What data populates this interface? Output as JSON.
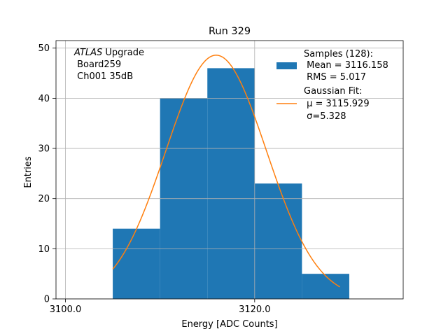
{
  "chart_data": {
    "type": "bar",
    "title": "Run 329",
    "xlabel": "Energy [ADC Counts]",
    "ylabel": "Entries",
    "xlim": [
      3099.0,
      3135.7
    ],
    "ylim": [
      0,
      51.5
    ],
    "x_ticks": [
      {
        "value": 3100.0,
        "label": "3100.0"
      },
      {
        "value": 3120.0,
        "label": "3120.0"
      }
    ],
    "y_ticks": [
      0,
      10,
      20,
      30,
      40,
      50
    ],
    "grid": true,
    "annotation": {
      "italic": "ATLAS",
      "line1_rest": " Upgrade",
      "line2": " Board259",
      "line3": " Ch001 35dB"
    },
    "histogram": {
      "name": "Samples (128):",
      "color": "#1f77b4",
      "bins": [
        {
          "x0": 3105,
          "x1": 3110,
          "count": 14
        },
        {
          "x0": 3110,
          "x1": 3115,
          "count": 40
        },
        {
          "x0": 3115,
          "x1": 3120,
          "count": 46
        },
        {
          "x0": 3120,
          "x1": 3125,
          "count": 23
        },
        {
          "x0": 3125,
          "x1": 3130,
          "count": 5
        }
      ]
    },
    "fit": {
      "name": "Gaussian Fit:",
      "color": "#ff7f0e",
      "mu": 3115.929,
      "sigma": 5.328,
      "amplitude": 48.6,
      "x_range": [
        3105,
        3129
      ]
    },
    "legend": {
      "placement": "top-right",
      "samples_lines": [
        "Samples (128):",
        " Mean = 3116.158",
        " RMS = 5.017"
      ],
      "fit_title": "Gaussian Fit:",
      "fit_mu": " μ = 3115.929",
      "fit_sigma": " σ=5.328"
    }
  }
}
